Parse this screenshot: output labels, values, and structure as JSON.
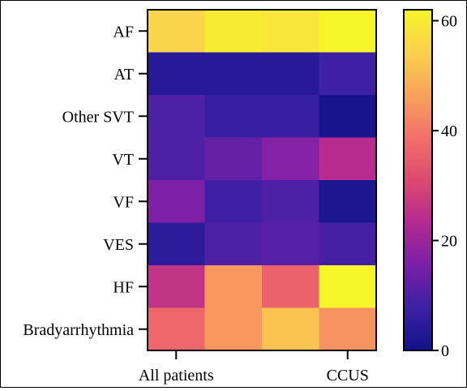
{
  "chart_data": {
    "type": "heatmap",
    "title": "",
    "xlabel": "",
    "ylabel": "",
    "rows": [
      "AF",
      "AT",
      "Other SVT",
      "VT",
      "VF",
      "VES",
      "HF",
      "Bradyarrhythmia"
    ],
    "x_tick_labels": [
      "All patients",
      "CCUS"
    ],
    "n_columns": 4,
    "values": [
      [
        55,
        60,
        59,
        62
      ],
      [
        4,
        4,
        4,
        8
      ],
      [
        10,
        7,
        7,
        1
      ],
      [
        10,
        13,
        17,
        24
      ],
      [
        16,
        8,
        10,
        2
      ],
      [
        5,
        10,
        11,
        9
      ],
      [
        26,
        45,
        36,
        62
      ],
      [
        37,
        45,
        52,
        44
      ]
    ],
    "colorbar": {
      "min": 0,
      "max": 62,
      "ticks": [
        0,
        20,
        40,
        60
      ],
      "colormap": "plasma-like",
      "stops": [
        "#12128a",
        "#3b20a4",
        "#7a1fa8",
        "#b32991",
        "#de4970",
        "#f2706a",
        "#f9a25c",
        "#fbd04d",
        "#f5f52a"
      ]
    }
  }
}
